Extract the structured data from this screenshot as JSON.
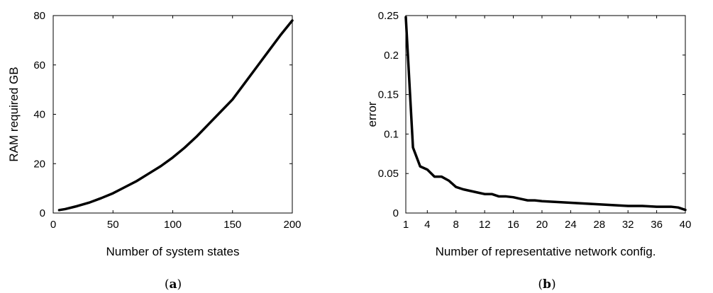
{
  "chart_data": [
    {
      "type": "line",
      "title": "",
      "xlabel": "Number of system states",
      "ylabel": "RAM required GB",
      "xlim": [
        0,
        200
      ],
      "ylim": [
        0,
        80
      ],
      "xticks": [
        0,
        50,
        100,
        150,
        200
      ],
      "yticks": [
        0,
        20,
        40,
        60,
        80
      ],
      "grid": false,
      "caption": {
        "open": "(",
        "letter": "a",
        "close": ")"
      },
      "series": [
        {
          "x": [
            5,
            10,
            20,
            30,
            40,
            50,
            60,
            70,
            80,
            90,
            100,
            110,
            120,
            130,
            140,
            150,
            160,
            170,
            180,
            190,
            200
          ],
          "y": [
            1.2,
            1.6,
            2.8,
            4.2,
            6,
            8,
            10.5,
            13,
            16,
            19,
            22.5,
            26.5,
            31,
            36,
            41,
            46,
            52.5,
            59,
            65.5,
            72,
            78
          ]
        }
      ]
    },
    {
      "type": "line",
      "title": "",
      "xlabel": "Number of representative network config.",
      "ylabel": "error",
      "xlim": [
        1,
        40
      ],
      "ylim": [
        0,
        0.25
      ],
      "xticks": [
        1,
        4,
        8,
        12,
        16,
        20,
        24,
        28,
        32,
        36,
        40
      ],
      "yticks": [
        0,
        0.05,
        0.1,
        0.15,
        0.2,
        0.25
      ],
      "grid": false,
      "caption": {
        "open": "(",
        "letter": "b",
        "close": ")"
      },
      "series": [
        {
          "x": [
            1,
            2,
            3,
            4,
            5,
            6,
            7,
            8,
            9,
            10,
            11,
            12,
            13,
            14,
            15,
            16,
            17,
            18,
            19,
            20,
            22,
            24,
            26,
            28,
            30,
            32,
            34,
            36,
            38,
            39,
            40
          ],
          "y": [
            0.248,
            0.083,
            0.059,
            0.055,
            0.046,
            0.046,
            0.041,
            0.033,
            0.03,
            0.028,
            0.026,
            0.024,
            0.024,
            0.021,
            0.021,
            0.02,
            0.018,
            0.016,
            0.016,
            0.015,
            0.014,
            0.013,
            0.012,
            0.011,
            0.01,
            0.009,
            0.009,
            0.008,
            0.008,
            0.007,
            0.004
          ]
        }
      ]
    }
  ]
}
